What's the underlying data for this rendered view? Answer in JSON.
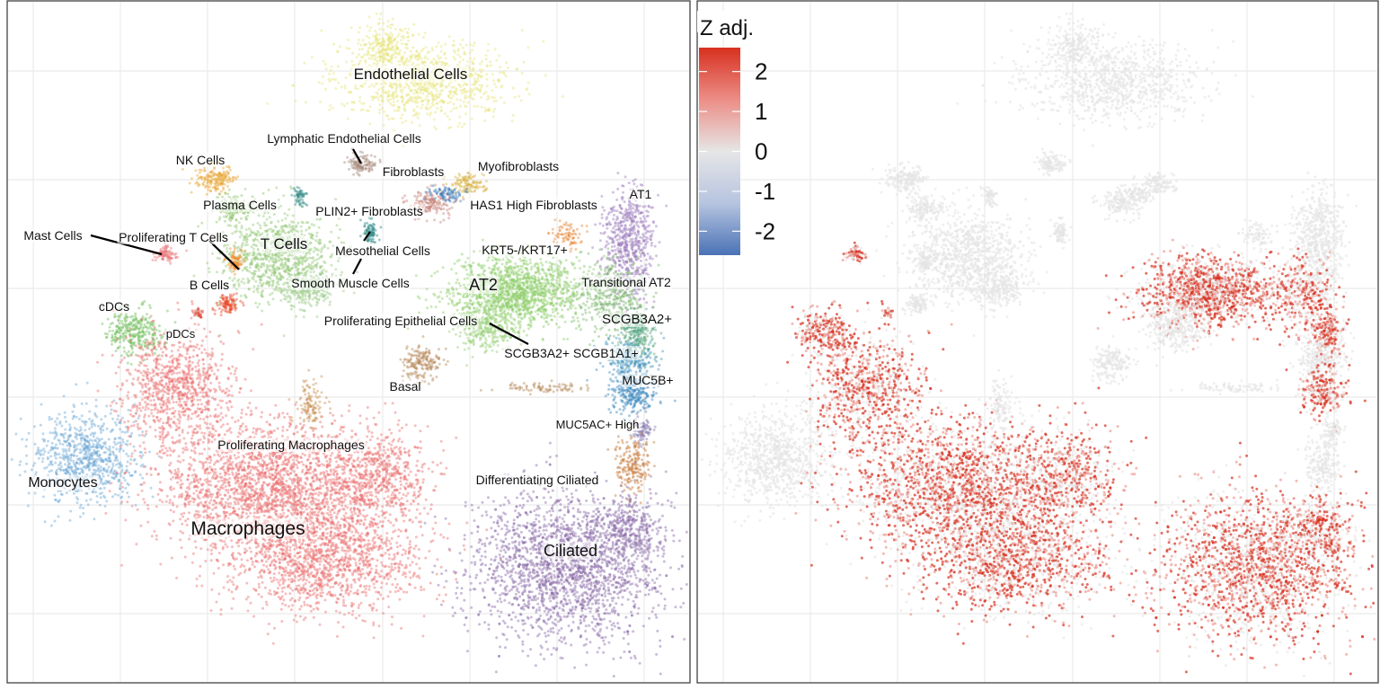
{
  "chart_data": [
    {
      "type": "scatter",
      "title": "",
      "xlabel": "",
      "ylabel": "",
      "grid": true,
      "legend": "none",
      "clusters": [
        {
          "name": "Endothelial Cells",
          "color": "#e6e57c"
        },
        {
          "name": "Lymphatic Endothelial Cells",
          "color": "#a6897c"
        },
        {
          "name": "Fibroblasts",
          "color": "#c7867c"
        },
        {
          "name": "Myofibroblasts",
          "color": "#d9b44a"
        },
        {
          "name": "NK Cells",
          "color": "#e8a83a"
        },
        {
          "name": "Plasma Cells",
          "color": "#8fc46a"
        },
        {
          "name": "PLIN2+ Fibroblasts",
          "color": "#3a8f8a"
        },
        {
          "name": "HAS1 High Fibroblasts",
          "color": "#3f7fbf"
        },
        {
          "name": "AT1",
          "color": "#9c7bbd"
        },
        {
          "name": "Mast Cells",
          "color": "#e8787a"
        },
        {
          "name": "Proliferating T Cells",
          "color": "#f08a2a"
        },
        {
          "name": "T Cells",
          "color": "#96c97a"
        },
        {
          "name": "Mesothelial Cells",
          "color": "#2f8a88"
        },
        {
          "name": "KRT5-/KRT17+",
          "color": "#e88a3a"
        },
        {
          "name": "B Cells",
          "color": "#e84a2a"
        },
        {
          "name": "Smooth Muscle Cells",
          "color": "#9bc98a"
        },
        {
          "name": "AT2",
          "color": "#8fcf6a"
        },
        {
          "name": "Transitional AT2",
          "color": "#7fb870"
        },
        {
          "name": "cDCs",
          "color": "#6fbf5a"
        },
        {
          "name": "pDCs",
          "color": "#d94a3a"
        },
        {
          "name": "Proliferating Epithelial Cells",
          "color": "#9ad07a"
        },
        {
          "name": "SCGB3A2+",
          "color": "#5aa882"
        },
        {
          "name": "SCGB3A2+ SCGB1A1+",
          "color": "#4a9abf"
        },
        {
          "name": "Basal",
          "color": "#b58a5a"
        },
        {
          "name": "MUC5B+",
          "color": "#3f8abf"
        },
        {
          "name": "MUC5AC+ High",
          "color": "#8a7ab0"
        },
        {
          "name": "Proliferating Macrophages",
          "color": "#c9955a"
        },
        {
          "name": "Monocytes",
          "color": "#6fa8d4"
        },
        {
          "name": "Differentiating Ciliated",
          "color": "#c87a3a"
        },
        {
          "name": "Macrophages",
          "color": "#ec6e6e"
        },
        {
          "name": "Ciliated",
          "color": "#8a6aa8"
        }
      ]
    },
    {
      "type": "scatter",
      "title": "",
      "xlabel": "",
      "ylabel": "",
      "grid": true,
      "color_scale": {
        "title": "Z adj.",
        "ticks": [
          "2",
          "1",
          "0",
          "-1",
          "-2"
        ],
        "tick_values": [
          2,
          1,
          0,
          -1,
          -2
        ],
        "range": [
          -2.6,
          2.6
        ],
        "colors": {
          "low": "#4a72b5",
          "mid": "#e6e6e6",
          "high": "#d7301f"
        }
      },
      "legend": "right-top",
      "high_regions": [
        "AT2",
        "Transitional AT2",
        "SCGB3A2+",
        "Mast Cells",
        "pDCs",
        "cDCs",
        "MUC5B+",
        "Ciliated",
        "Macrophages"
      ]
    }
  ]
}
